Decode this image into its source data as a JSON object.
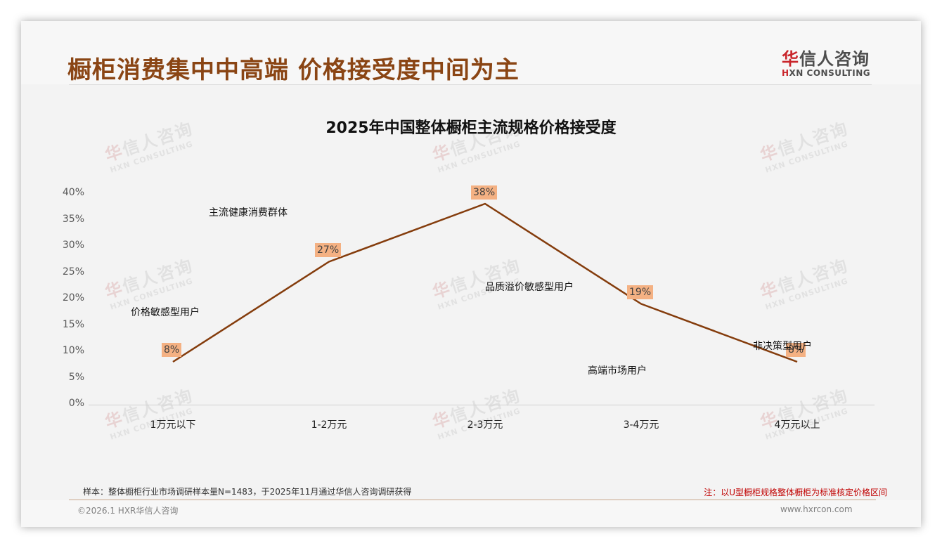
{
  "header": {
    "title": "橱柜消费集中中高端 价格接受度中间为主",
    "logo": {
      "cn_first": "华",
      "cn_rest": "信人咨询",
      "en_first": "H",
      "en_rest": "XN CONSULTING"
    }
  },
  "watermark": {
    "cn_first": "华",
    "cn_rest": "信人咨询",
    "en": "HXN CONSULTING"
  },
  "chart_data": {
    "type": "line",
    "title": "2025年中国整体橱柜主流规格价格接受度",
    "categories": [
      "1万元以下",
      "1-2万元",
      "2-3万元",
      "3-4万元",
      "4万元以上"
    ],
    "values": [
      8,
      27,
      38,
      19,
      8
    ],
    "value_labels": [
      "8%",
      "27%",
      "38%",
      "19%",
      "8%"
    ],
    "xlabel": "",
    "ylabel": "",
    "ylim": [
      0,
      40
    ],
    "y_ticks": [
      "0%",
      "5%",
      "10%",
      "15%",
      "20%",
      "25%",
      "30%",
      "35%",
      "40%"
    ],
    "grid": false,
    "legend": null,
    "line_color": "#843c0c",
    "label_bg_color": "#f4b183",
    "annotations": [
      "价格敏感型用户",
      "主流健康消费群体",
      "品质溢价敏感型用户",
      "高端市场用户",
      "非决策型用户"
    ]
  },
  "footer": {
    "source": "样本：整体橱柜行业市场调研样本量N=1483，于2025年11月通过华信人咨询调研获得",
    "note": "注：以U型橱柜规格整体橱柜为标准核定价格区间",
    "copyright": "©2026.1 HXR华信人咨询",
    "website": "www.hxrcon.com"
  }
}
